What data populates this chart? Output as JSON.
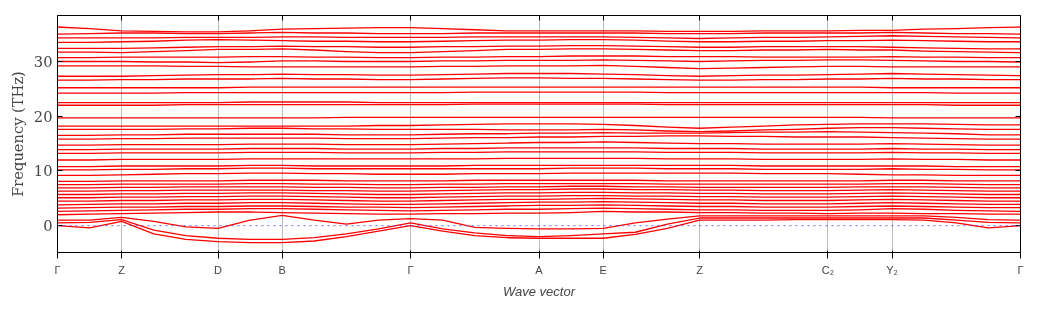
{
  "chart_data": {
    "type": "line",
    "xlabel": "Wave vector",
    "ylabel": "Frequency (THz)",
    "ylim": [
      -4.9,
      38.4
    ],
    "categories": [
      "Γ",
      null,
      "Z",
      null,
      null,
      "D",
      null,
      "B",
      null,
      null,
      null,
      "Γ",
      null,
      null,
      null,
      "A",
      null,
      "E",
      null,
      null,
      "Z",
      null,
      null,
      null,
      "C₂",
      null,
      "Y₂",
      null,
      null,
      null,
      "Γ"
    ],
    "yticks": [
      0,
      10,
      20,
      30
    ],
    "grid": "x",
    "line_style": "solid",
    "ref_lines": [
      {
        "axis": "y",
        "value": 0,
        "color": "#4040ff",
        "line_style": "dotted"
      }
    ],
    "series": [
      {
        "color": "#ff0000",
        "values": [
          0,
          -0.4,
          0.8,
          -1.5,
          -2.5,
          -2.9,
          -3.1,
          -3.1,
          -2.8,
          -2,
          -1,
          0,
          -1,
          -1.8,
          -2.2,
          -2.3,
          -2.3,
          -2.3,
          -1.6,
          -0.5,
          1.0,
          1.0,
          1.0,
          1.1,
          1.1,
          1.1,
          1.1,
          1.0,
          0.5,
          -0.4,
          0
        ]
      },
      {
        "color": "#ff0000",
        "values": [
          0.5,
          0.6,
          1.1,
          -0.8,
          -1.8,
          -2.3,
          -2.5,
          -2.5,
          -2.2,
          -1.5,
          -0.6,
          0.5,
          -0.6,
          -1.3,
          -1.8,
          -2,
          -1.8,
          -1.5,
          -1.2,
          0.3,
          1.4,
          1.4,
          1.4,
          1.4,
          1.4,
          1.4,
          1.4,
          1.4,
          1.0,
          0.6,
          0.5
        ]
      },
      {
        "color": "#ff0000",
        "values": [
          1.0,
          1.0,
          1.5,
          0.8,
          -0.2,
          -0.5,
          1.0,
          1.9,
          1.0,
          0.3,
          1.0,
          1.3,
          1.0,
          -0.3,
          -0.5,
          -0.6,
          -0.6,
          -0.5,
          0.5,
          1.2,
          1.8,
          1.8,
          1.8,
          1.8,
          1.8,
          1.8,
          1.8,
          1.8,
          1.5,
          1.1,
          1.0
        ]
      },
      {
        "color": "#ff0000",
        "values": [
          2.0,
          2.1,
          2.2,
          2.3,
          2.4,
          2.5,
          2.5,
          2.4,
          2.3,
          2.2,
          2.1,
          2.1,
          2.2,
          2.2,
          2.3,
          2.3,
          2.4,
          2.6,
          2.5,
          2.5,
          2.4,
          2.4,
          2.3,
          2.3,
          2.2,
          2.3,
          2.3,
          2.2,
          2.2,
          2.1,
          2.1
        ]
      },
      {
        "color": "#ff0000",
        "values": [
          2.6,
          2.7,
          2.8,
          2.9,
          3.0,
          3.0,
          3.1,
          3.1,
          3.0,
          2.9,
          2.8,
          2.7,
          2.8,
          2.9,
          3.0,
          3.0,
          3.1,
          3.2,
          3.1,
          3.0,
          2.9,
          2.9,
          2.8,
          2.8,
          2.8,
          2.9,
          3.1,
          3.0,
          2.8,
          2.7,
          2.6
        ]
      },
      {
        "color": "#ff0000",
        "values": [
          3.2,
          3.3,
          3.4,
          3.4,
          3.5,
          3.5,
          3.6,
          3.6,
          3.5,
          3.4,
          3.4,
          3.3,
          3.4,
          3.5,
          3.6,
          3.7,
          3.7,
          3.8,
          3.7,
          3.6,
          3.5,
          3.5,
          3.4,
          3.4,
          3.4,
          3.5,
          3.6,
          3.5,
          3.4,
          3.3,
          3.3
        ]
      },
      {
        "color": "#ff0000",
        "values": [
          3.8,
          3.9,
          4.0,
          4.0,
          4.1,
          4.1,
          4.2,
          4.2,
          4.1,
          4.0,
          3.9,
          3.9,
          4.0,
          4.1,
          4.2,
          4.3,
          4.3,
          4.4,
          4.3,
          4.2,
          4.1,
          4.1,
          4.0,
          4.0,
          4.0,
          4.1,
          4.2,
          4.1,
          4.0,
          3.9,
          3.9
        ]
      },
      {
        "color": "#ff0000",
        "values": [
          4.5,
          4.5,
          4.6,
          4.6,
          4.7,
          4.7,
          4.8,
          4.8,
          4.7,
          4.6,
          4.5,
          4.5,
          4.6,
          4.7,
          4.8,
          4.8,
          4.9,
          5.0,
          4.9,
          4.8,
          4.7,
          4.7,
          4.6,
          4.6,
          4.6,
          4.7,
          4.8,
          4.7,
          4.6,
          4.5,
          4.5
        ]
      },
      {
        "color": "#ff0000",
        "values": [
          5.1,
          5.1,
          5.2,
          5.2,
          5.3,
          5.3,
          5.4,
          5.4,
          5.3,
          5.2,
          5.1,
          5.1,
          5.2,
          5.3,
          5.4,
          5.4,
          5.5,
          5.5,
          5.4,
          5.4,
          5.3,
          5.3,
          5.2,
          5.2,
          5.2,
          5.3,
          5.4,
          5.3,
          5.2,
          5.1,
          5.1
        ]
      },
      {
        "color": "#ff0000",
        "values": [
          5.7,
          5.7,
          5.8,
          5.8,
          5.9,
          5.9,
          6.0,
          6.0,
          5.9,
          5.8,
          5.7,
          5.7,
          5.8,
          5.9,
          6.0,
          6.0,
          6.1,
          6.1,
          6.0,
          6.0,
          5.9,
          5.9,
          5.8,
          5.8,
          5.8,
          5.9,
          6.0,
          5.9,
          5.8,
          5.7,
          5.7
        ]
      },
      {
        "color": "#ff0000",
        "values": [
          6.3,
          6.3,
          6.4,
          6.4,
          6.5,
          6.5,
          6.5,
          6.5,
          6.4,
          6.4,
          6.3,
          6.3,
          6.4,
          6.5,
          6.6,
          6.6,
          6.7,
          6.7,
          6.6,
          6.6,
          6.5,
          6.5,
          6.4,
          6.4,
          6.4,
          6.5,
          6.6,
          6.5,
          6.4,
          6.3,
          6.3
        ]
      },
      {
        "color": "#ff0000",
        "values": [
          6.9,
          6.9,
          7.0,
          7.0,
          7.1,
          7.1,
          7.1,
          7.1,
          7.0,
          7.0,
          6.9,
          6.9,
          7.0,
          7.0,
          7.1,
          7.1,
          7.2,
          7.2,
          7.1,
          7.1,
          7.0,
          7.0,
          7.0,
          7.0,
          7.0,
          7.1,
          7.1,
          7.1,
          7.0,
          6.9,
          6.9
        ]
      },
      {
        "color": "#ff0000",
        "values": [
          7.5,
          7.5,
          7.6,
          7.6,
          7.6,
          7.6,
          7.7,
          7.7,
          7.6,
          7.6,
          7.5,
          7.5,
          7.6,
          7.6,
          7.7,
          7.7,
          7.7,
          7.7,
          7.7,
          7.6,
          7.6,
          7.6,
          7.6,
          7.6,
          7.6,
          7.6,
          7.7,
          7.7,
          7.6,
          7.5,
          7.5
        ]
      },
      {
        "color": "#ff0000",
        "values": [
          8.1,
          8.1,
          8.2,
          8.2,
          8.2,
          8.2,
          8.3,
          8.3,
          8.3,
          8.2,
          8.2,
          8.2,
          8.2,
          8.3,
          8.3,
          8.3,
          8.3,
          8.3,
          8.3,
          8.2,
          8.2,
          8.2,
          8.2,
          8.2,
          8.2,
          8.2,
          8.3,
          8.3,
          8.2,
          8.2,
          8.2
        ]
      },
      {
        "color": "#ff0000",
        "values": [
          9.2,
          9.2,
          9.3,
          9.4,
          9.5,
          9.5,
          9.6,
          9.6,
          9.5,
          9.5,
          9.4,
          9.4,
          9.4,
          9.5,
          9.5,
          9.5,
          9.6,
          9.6,
          9.6,
          9.6,
          9.6,
          9.6,
          9.5,
          9.5,
          9.5,
          9.4,
          9.3,
          9.3,
          9.2,
          9.2,
          9.2
        ]
      },
      {
        "color": "#ff0000",
        "values": [
          10.2,
          10.2,
          10.3,
          10.3,
          10.4,
          10.4,
          10.5,
          10.5,
          10.4,
          10.4,
          10.4,
          10.4,
          10.4,
          10.4,
          10.4,
          10.4,
          10.5,
          10.5,
          10.5,
          10.4,
          10.4,
          10.4,
          10.3,
          10.3,
          10.3,
          10.3,
          10.4,
          10.3,
          10.3,
          10.2,
          10.2
        ]
      },
      {
        "color": "#ff0000",
        "values": [
          10.8,
          10.8,
          10.9,
          10.9,
          10.9,
          10.9,
          11.0,
          11.0,
          10.9,
          10.9,
          10.9,
          10.9,
          10.9,
          11.0,
          11.0,
          11.0,
          11.0,
          11.0,
          11.0,
          11.0,
          11.0,
          11.0,
          10.9,
          10.9,
          10.9,
          10.9,
          10.9,
          10.9,
          10.8,
          10.8,
          10.8
        ]
      },
      {
        "color": "#ff0000",
        "values": [
          12.0,
          12.0,
          12.1,
          12.1,
          12.1,
          12.1,
          12.2,
          12.2,
          12.2,
          12.2,
          12.2,
          12.2,
          12.2,
          12.2,
          12.3,
          12.3,
          12.3,
          12.3,
          12.3,
          12.2,
          12.2,
          12.2,
          12.1,
          12.1,
          12.1,
          12.1,
          12.2,
          12.1,
          12.1,
          12.0,
          12.0
        ]
      },
      {
        "color": "#ff0000",
        "values": [
          13.2,
          13.2,
          13.3,
          13.3,
          13.3,
          13.3,
          13.4,
          13.4,
          13.4,
          13.3,
          13.3,
          13.3,
          13.4,
          13.4,
          13.5,
          13.5,
          13.5,
          13.5,
          13.5,
          13.4,
          13.4,
          13.4,
          13.3,
          13.3,
          13.3,
          13.3,
          13.4,
          13.3,
          13.3,
          13.2,
          13.2
        ]
      },
      {
        "color": "#ff0000",
        "values": [
          13.9,
          13.9,
          14.0,
          14.0,
          14.0,
          14.0,
          14.1,
          14.1,
          14.1,
          14.0,
          14.0,
          14.0,
          14.1,
          14.1,
          14.2,
          14.2,
          14.2,
          14.2,
          14.2,
          14.1,
          14.1,
          14.1,
          14.0,
          14.0,
          14.0,
          14.0,
          14.1,
          14.0,
          14.0,
          13.9,
          13.9
        ]
      },
      {
        "color": "#ff0000",
        "values": [
          14.7,
          14.7,
          14.8,
          14.8,
          14.8,
          14.8,
          14.9,
          14.9,
          14.9,
          14.8,
          14.8,
          14.8,
          14.9,
          15.0,
          15.1,
          15.2,
          15.2,
          15.3,
          15.2,
          15.1,
          15.0,
          15.0,
          14.9,
          14.9,
          14.9,
          14.9,
          15.0,
          14.9,
          14.8,
          14.7,
          14.7
        ]
      },
      {
        "color": "#ff0000",
        "values": [
          15.8,
          15.8,
          15.9,
          15.9,
          16.0,
          16.0,
          16.0,
          16.0,
          16.0,
          15.9,
          15.9,
          15.9,
          16.0,
          16.1,
          16.1,
          16.2,
          16.2,
          16.3,
          16.3,
          16.4,
          16.4,
          16.3,
          16.3,
          16.2,
          16.2,
          16.2,
          16.1,
          16.0,
          15.9,
          15.8,
          15.8
        ]
      },
      {
        "color": "#ff0000",
        "values": [
          16.5,
          16.5,
          16.6,
          16.6,
          16.7,
          16.7,
          16.7,
          16.7,
          16.7,
          16.6,
          16.6,
          16.6,
          16.7,
          16.8,
          16.8,
          16.9,
          16.9,
          17.0,
          16.9,
          16.9,
          16.9,
          17.0,
          17.1,
          17.1,
          17.2,
          17.1,
          17.0,
          16.9,
          16.8,
          16.6,
          16.6
        ]
      },
      {
        "color": "#ff0000",
        "values": [
          17.6,
          17.6,
          17.6,
          17.6,
          17.7,
          17.7,
          17.8,
          17.8,
          17.7,
          17.7,
          17.6,
          17.6,
          17.6,
          17.6,
          17.5,
          17.5,
          17.5,
          17.6,
          17.5,
          17.3,
          17.2,
          17.3,
          17.5,
          17.6,
          17.8,
          17.9,
          17.9,
          17.8,
          17.7,
          17.6,
          17.6
        ]
      },
      {
        "color": "#ff0000",
        "values": [
          18.2,
          18.2,
          18.2,
          18.2,
          18.2,
          18.2,
          18.2,
          18.2,
          18.2,
          18.2,
          18.3,
          18.3,
          18.4,
          18.5,
          18.6,
          18.6,
          18.6,
          18.5,
          18.3,
          18.0,
          17.8,
          18.0,
          18.2,
          18.4,
          18.5,
          18.6,
          18.6,
          18.6,
          18.5,
          18.4,
          18.4
        ]
      },
      {
        "color": "#ff0000",
        "values": [
          19.7,
          19.7,
          19.7,
          19.7,
          19.7,
          19.7,
          19.7,
          19.7,
          19.7,
          19.8,
          19.8,
          19.8,
          19.8,
          19.8,
          19.8,
          19.8,
          19.8,
          19.8,
          19.8,
          19.8,
          19.8,
          19.8,
          19.8,
          19.8,
          19.8,
          19.8,
          19.7,
          19.7,
          19.7,
          19.7,
          19.7
        ]
      },
      {
        "color": "#ff0000",
        "values": [
          22.0,
          22.0,
          22.0,
          22.0,
          22.1,
          22.1,
          22.1,
          22.1,
          22.1,
          22.1,
          22.1,
          22.1,
          22.1,
          22.2,
          22.2,
          22.2,
          22.2,
          22.2,
          22.2,
          22.1,
          22.1,
          22.1,
          22.1,
          22.1,
          22.1,
          22.1,
          22.1,
          22.1,
          22.0,
          22.0,
          22.0
        ]
      },
      {
        "color": "#ff0000",
        "values": [
          22.5,
          22.5,
          22.5,
          22.5,
          22.5,
          22.5,
          22.6,
          22.6,
          22.6,
          22.6,
          22.5,
          22.5,
          22.5,
          22.5,
          22.5,
          22.5,
          22.5,
          22.5,
          22.5,
          22.5,
          22.5,
          22.5,
          22.5,
          22.5,
          22.5,
          22.5,
          22.5,
          22.5,
          22.5,
          22.5,
          22.5
        ]
      },
      {
        "color": "#ff0000",
        "values": [
          24.2,
          24.2,
          24.2,
          24.2,
          24.3,
          24.3,
          24.3,
          24.3,
          24.3,
          24.3,
          24.3,
          24.3,
          24.3,
          24.4,
          24.4,
          24.4,
          24.4,
          24.4,
          24.4,
          24.3,
          24.3,
          24.3,
          24.3,
          24.3,
          24.3,
          24.3,
          24.3,
          24.3,
          24.2,
          24.2,
          24.2
        ]
      },
      {
        "color": "#ff0000",
        "values": [
          25.2,
          25.2,
          25.2,
          25.2,
          25.2,
          25.2,
          25.3,
          25.3,
          25.3,
          25.3,
          25.3,
          25.3,
          25.3,
          25.3,
          25.3,
          25.3,
          25.3,
          25.3,
          25.3,
          25.3,
          25.3,
          25.3,
          25.3,
          25.3,
          25.3,
          25.3,
          25.2,
          25.2,
          25.2,
          25.2,
          25.2
        ]
      },
      {
        "color": "#ff0000",
        "values": [
          26.6,
          26.6,
          26.7,
          26.7,
          26.8,
          26.8,
          26.8,
          26.9,
          26.8,
          26.8,
          26.7,
          26.7,
          26.8,
          26.9,
          27.0,
          27.0,
          26.9,
          26.9,
          26.8,
          26.7,
          26.6,
          26.6,
          26.7,
          26.7,
          26.8,
          26.8,
          26.9,
          26.8,
          26.8,
          26.7,
          26.7
        ]
      },
      {
        "color": "#ff0000",
        "values": [
          27.3,
          27.3,
          27.3,
          27.4,
          27.5,
          27.6,
          27.6,
          27.7,
          27.6,
          27.6,
          27.5,
          27.5,
          27.6,
          27.7,
          27.8,
          27.8,
          27.8,
          27.7,
          27.6,
          27.4,
          27.3,
          27.4,
          27.5,
          27.5,
          27.6,
          27.7,
          27.8,
          27.7,
          27.6,
          27.5,
          27.4
        ]
      },
      {
        "color": "#ff0000",
        "values": [
          29.2,
          29.2,
          29.2,
          29.2,
          29.1,
          29.1,
          29.0,
          29.0,
          29.0,
          29.0,
          29.0,
          29.0,
          29.1,
          29.1,
          29.2,
          29.2,
          29.2,
          29.3,
          29.1,
          28.9,
          28.7,
          28.8,
          28.9,
          29.0,
          29.1,
          29.1,
          29.0,
          29.0,
          29.0,
          29.0,
          29.0
        ]
      },
      {
        "color": "#ff0000",
        "values": [
          30.0,
          30.0,
          30.0,
          29.9,
          29.9,
          29.8,
          29.9,
          30.1,
          30.1,
          30.0,
          30.0,
          30.0,
          30.1,
          30.1,
          30.2,
          30.2,
          30.2,
          30.3,
          30.2,
          30.1,
          30.0,
          30.1,
          30.2,
          30.2,
          30.3,
          30.3,
          30.2,
          30.1,
          30.0,
          30.0,
          29.9
        ]
      },
      {
        "color": "#ff0000",
        "values": [
          30.7,
          30.7,
          30.8,
          30.8,
          30.8,
          30.8,
          30.9,
          30.9,
          30.8,
          30.8,
          30.7,
          30.7,
          30.8,
          30.8,
          30.9,
          30.9,
          31.0,
          31.0,
          31.0,
          30.9,
          30.9,
          30.9,
          30.8,
          30.8,
          30.8,
          30.8,
          30.9,
          30.8,
          30.8,
          30.7,
          30.7
        ]
      },
      {
        "color": "#ff0000",
        "values": [
          31.7,
          31.7,
          31.6,
          31.8,
          32.0,
          32.2,
          32.2,
          32.3,
          32.1,
          31.8,
          31.6,
          31.6,
          31.8,
          32.0,
          32.2,
          32.2,
          32.3,
          32.3,
          32.2,
          32.1,
          32.0,
          32.0,
          32.1,
          32.1,
          32.2,
          32.1,
          32.1,
          31.9,
          31.8,
          31.7,
          31.6
        ]
      },
      {
        "color": "#ff0000",
        "values": [
          32.4,
          32.4,
          32.4,
          32.5,
          32.6,
          32.7,
          32.7,
          32.8,
          32.7,
          32.7,
          32.6,
          32.6,
          32.7,
          32.7,
          32.8,
          32.8,
          32.9,
          32.9,
          32.8,
          32.7,
          32.6,
          32.6,
          32.7,
          32.7,
          32.7,
          32.7,
          32.6,
          32.5,
          32.4,
          32.3,
          32.3
        ]
      },
      {
        "color": "#ff0000",
        "values": [
          33.5,
          33.5,
          33.6,
          33.7,
          33.9,
          34.0,
          33.9,
          33.8,
          33.7,
          33.7,
          33.6,
          33.6,
          33.7,
          33.8,
          33.9,
          33.9,
          34.0,
          34.0,
          33.9,
          33.7,
          33.6,
          33.6,
          33.7,
          33.7,
          33.8,
          33.8,
          33.9,
          33.8,
          33.7,
          33.6,
          33.6
        ]
      },
      {
        "color": "#ff0000",
        "values": [
          34.3,
          34.3,
          34.3,
          34.3,
          34.4,
          34.4,
          34.4,
          34.5,
          34.5,
          34.4,
          34.4,
          34.4,
          34.4,
          34.5,
          34.5,
          34.5,
          34.5,
          34.5,
          34.4,
          34.3,
          34.2,
          34.3,
          34.4,
          34.4,
          34.5,
          34.6,
          34.7,
          34.6,
          34.5,
          34.4,
          34.3
        ]
      },
      {
        "color": "#ff0000",
        "values": [
          35.0,
          35.1,
          35.2,
          35.2,
          35.1,
          35.1,
          35.2,
          35.3,
          35.2,
          35.2,
          35.1,
          35.1,
          35.1,
          35.2,
          35.2,
          35.2,
          35.2,
          35.2,
          35.2,
          35.1,
          35.1,
          35.1,
          35.2,
          35.2,
          35.2,
          35.2,
          35.3,
          35.2,
          35.1,
          35.1,
          35.0
        ]
      },
      {
        "color": "#ff0000",
        "values": [
          36.3,
          36.0,
          35.6,
          35.5,
          35.4,
          35.4,
          35.6,
          35.9,
          36.0,
          36.1,
          36.2,
          36.2,
          36.0,
          35.8,
          35.6,
          35.6,
          35.6,
          35.6,
          35.6,
          35.5,
          35.5,
          35.5,
          35.6,
          35.6,
          35.6,
          35.7,
          35.7,
          35.9,
          36.0,
          36.2,
          36.3
        ]
      }
    ]
  }
}
